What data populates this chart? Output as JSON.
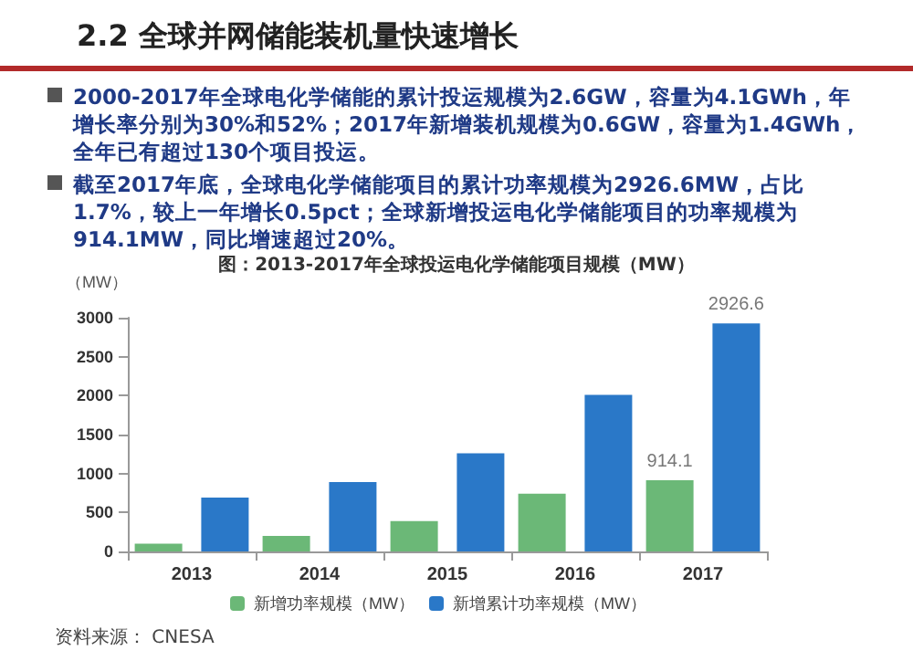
{
  "chart_data": {
    "type": "bar",
    "title": "2.2 全球并网储能装机量快速增长",
    "subtitle": "图：2013-2017年全球投运电化学储能项目规模（MW）",
    "ylabel": "（MW）",
    "annotations": [
      "2000-2017年全球电化学储能的累计投运规模为2.6GW，容量为4.1GWh，年增长率分别为30%和52%；2017年新增装机规模为0.6GW，容量为1.4GWh，全年已有超过130个项目投运。",
      "截至2017年底，全球电化学储能项目的累计功率规模为2926.6MW，占比1.7%，较上一年增长0.5pct；全球新增投运电化学储能项目的功率规模为914.1MW，同比增速超过20%。",
      "资料来源： CNESA"
    ],
    "categories": [
      "2013",
      "2014",
      "2015",
      "2016",
      "2017"
    ],
    "series": [
      {
        "name": "新增功率规模（MW）",
        "color": "#6bb877",
        "values": [
          100,
          200,
          390,
          740,
          914.1
        ],
        "value_labels": [
          null,
          null,
          null,
          null,
          "914.1"
        ]
      },
      {
        "name": "新增累计功率规模（MW）",
        "color": "#2a78c8",
        "values": [
          690,
          890,
          1260,
          2010,
          2926.6
        ],
        "value_labels": [
          null,
          null,
          null,
          null,
          "2926.6"
        ]
      }
    ],
    "ylim": [
      0,
      3000
    ],
    "yticks": [
      0,
      500,
      1000,
      1500,
      2000,
      2500,
      3000
    ],
    "grid": false,
    "legend": "bottom"
  }
}
